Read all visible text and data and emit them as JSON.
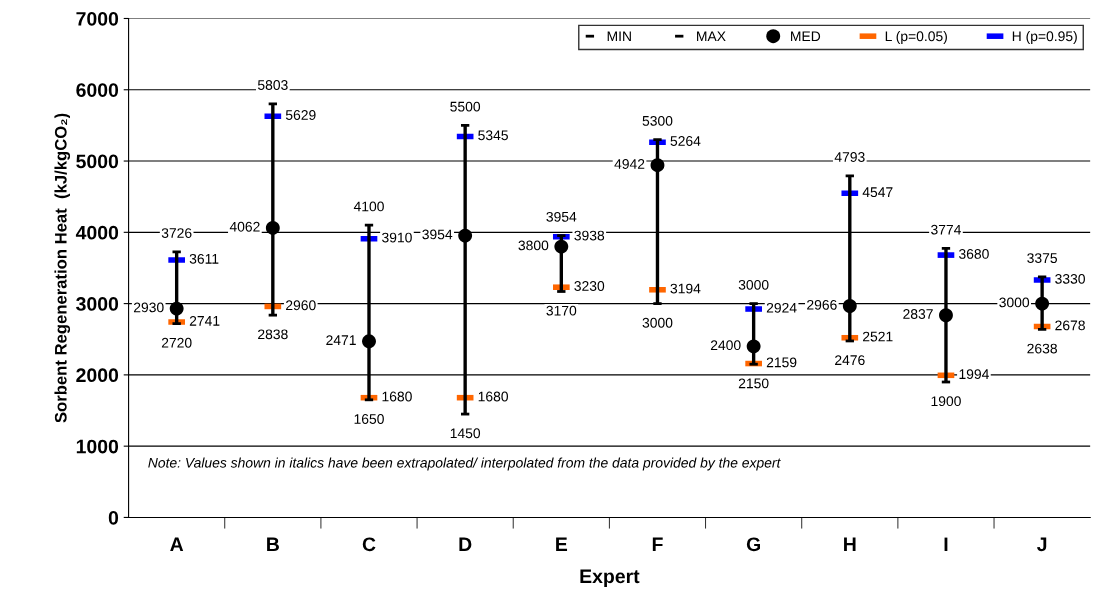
{
  "chart_data": {
    "type": "scatter",
    "xlabel": "Expert",
    "ylabel": "Sorbent Regeneration Heat  (kJ/kgCO₂)",
    "categories": [
      "A",
      "B",
      "C",
      "D",
      "E",
      "F",
      "G",
      "H",
      "I",
      "J"
    ],
    "ylim": [
      0,
      7000
    ],
    "yticks": [
      0,
      1000,
      2000,
      3000,
      4000,
      5000,
      6000,
      7000
    ],
    "grid": "y",
    "legend": "top right",
    "annotations": [
      "Note: Values shown in italics have been extrapolated/ interpolated from the data provided by the expert"
    ],
    "series": [
      {
        "type": "bar",
        "color": "#000000",
        "base": [
          2720,
          2838,
          1650,
          1450,
          3170,
          3000,
          2150,
          2476,
          1900,
          2638
        ],
        "values": [
          1006,
          2965,
          2450,
          4050,
          784,
          2300,
          850,
          2317,
          1874,
          737
        ]
      },
      {
        "name": "MIN",
        "marker": "square",
        "color": "#000000",
        "values": [
          2720,
          2838,
          1650,
          1450,
          3170,
          3000,
          2150,
          2476,
          1900,
          2638
        ],
        "value_labels": [
          "2720",
          "2838",
          "1650",
          "1450",
          "3170",
          "3000",
          "2150",
          "2476",
          "1900",
          "2638"
        ]
      },
      {
        "name": "MAX",
        "marker": "square",
        "color": "#000000",
        "values": [
          3726,
          5803,
          4100,
          5500,
          3954,
          5300,
          3000,
          4793,
          3774,
          3375
        ],
        "value_labels": [
          "3726",
          "5803",
          "4100",
          "5500",
          "3954",
          "5300",
          "3000",
          "4793",
          "3774",
          "3375"
        ]
      },
      {
        "name": "MED",
        "marker": "circle",
        "color": "#000000",
        "values": [
          2930,
          4062,
          2471,
          3954,
          3800,
          4942,
          2400,
          2966,
          2837,
          3000
        ],
        "value_labels": [
          "2930",
          "4062",
          "2471",
          "3954",
          "3800",
          "4942",
          "2400",
          "2966",
          "2837",
          "3000"
        ]
      },
      {
        "name": "L (p=0.05)",
        "marker": "square",
        "color": "#ff6600",
        "values": [
          2741,
          2960,
          1680,
          1680,
          3230,
          3194,
          2159,
          2521,
          1994,
          2678
        ],
        "value_labels": [
          "2741",
          "2960",
          "1680",
          "1680",
          "3230",
          "3194",
          "2159",
          "2521",
          "1994",
          "2678"
        ]
      },
      {
        "name": "H (p=0.95)",
        "marker": "square",
        "color": "#0000ff",
        "values": [
          3611,
          5629,
          3910,
          5345,
          3938,
          5264,
          2924,
          4547,
          3680,
          3330
        ],
        "value_labels": [
          "3611",
          "5629",
          "3910",
          "5345",
          "3938",
          "5264",
          "2924",
          "4547",
          "3680",
          "3330"
        ]
      }
    ]
  }
}
